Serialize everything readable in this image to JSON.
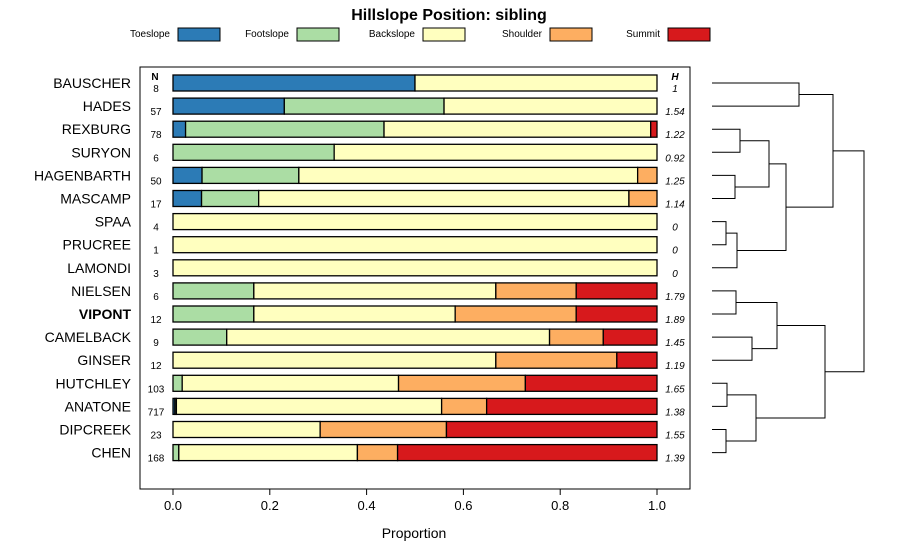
{
  "chart_data": {
    "type": "bar",
    "orientation": "horizontal-stacked",
    "title": "Hillslope Position: sibling",
    "xlabel": "Proportion",
    "xlim": [
      0,
      1
    ],
    "xticks": [
      "0.0",
      "0.2",
      "0.4",
      "0.6",
      "0.8",
      "1.0"
    ],
    "xtick_values": [
      0,
      0.2,
      0.4,
      0.6,
      0.8,
      1.0
    ],
    "n_header": "N",
    "h_header": "H",
    "highlight": "VIPONT",
    "series": [
      {
        "name": "Toeslope",
        "color": "#2c7bb6"
      },
      {
        "name": "Footslope",
        "color": "#abdda4"
      },
      {
        "name": "Backslope",
        "color": "#ffffbf"
      },
      {
        "name": "Shoulder",
        "color": "#fdae61"
      },
      {
        "name": "Summit",
        "color": "#d7191c"
      }
    ],
    "rows": [
      {
        "name": "BAUSCHER",
        "n": "8",
        "h": "1",
        "values": [
          0.5,
          0,
          0.5,
          0,
          0
        ]
      },
      {
        "name": "HADES",
        "n": "57",
        "h": "1.54",
        "values": [
          0.23,
          0.33,
          0.44,
          0,
          0
        ]
      },
      {
        "name": "REXBURG",
        "n": "78",
        "h": "1.22",
        "values": [
          0.026,
          0.41,
          0.551,
          0,
          0.013
        ]
      },
      {
        "name": "SURYON",
        "n": "6",
        "h": "0.92",
        "values": [
          0,
          0.333,
          0.667,
          0,
          0
        ]
      },
      {
        "name": "HAGENBARTH",
        "n": "50",
        "h": "1.25",
        "values": [
          0.06,
          0.2,
          0.7,
          0.04,
          0
        ]
      },
      {
        "name": "MASCAMP",
        "n": "17",
        "h": "1.14",
        "values": [
          0.059,
          0.118,
          0.765,
          0.058,
          0
        ]
      },
      {
        "name": "SPAA",
        "n": "4",
        "h": "0",
        "values": [
          0,
          0,
          1,
          0,
          0
        ]
      },
      {
        "name": "PRUCREE",
        "n": "1",
        "h": "0",
        "values": [
          0,
          0,
          1,
          0,
          0
        ]
      },
      {
        "name": "LAMONDI",
        "n": "3",
        "h": "0",
        "values": [
          0,
          0,
          1,
          0,
          0
        ]
      },
      {
        "name": "NIELSEN",
        "n": "6",
        "h": "1.79",
        "values": [
          0,
          0.167,
          0.5,
          0.166,
          0.167
        ]
      },
      {
        "name": "VIPONT",
        "n": "12",
        "h": "1.89",
        "values": [
          0,
          0.167,
          0.416,
          0.25,
          0.167
        ]
      },
      {
        "name": "CAMELBACK",
        "n": "9",
        "h": "1.45",
        "values": [
          0,
          0.111,
          0.667,
          0.111,
          0.111
        ]
      },
      {
        "name": "GINSER",
        "n": "12",
        "h": "1.19",
        "values": [
          0,
          0,
          0.667,
          0.25,
          0.083
        ]
      },
      {
        "name": "HUTCHLEY",
        "n": "103",
        "h": "1.65",
        "values": [
          0,
          0.019,
          0.447,
          0.262,
          0.272
        ]
      },
      {
        "name": "ANATONE",
        "n": "717",
        "h": "1.38",
        "values": [
          0.004,
          0.003,
          0.548,
          0.093,
          0.352
        ]
      },
      {
        "name": "DIPCREEK",
        "n": "23",
        "h": "1.55",
        "values": [
          0,
          0,
          0.304,
          0.261,
          0.435
        ]
      },
      {
        "name": "CHEN",
        "n": "168",
        "h": "1.39",
        "values": [
          0,
          0.012,
          0.369,
          0.083,
          0.536
        ]
      }
    ]
  }
}
